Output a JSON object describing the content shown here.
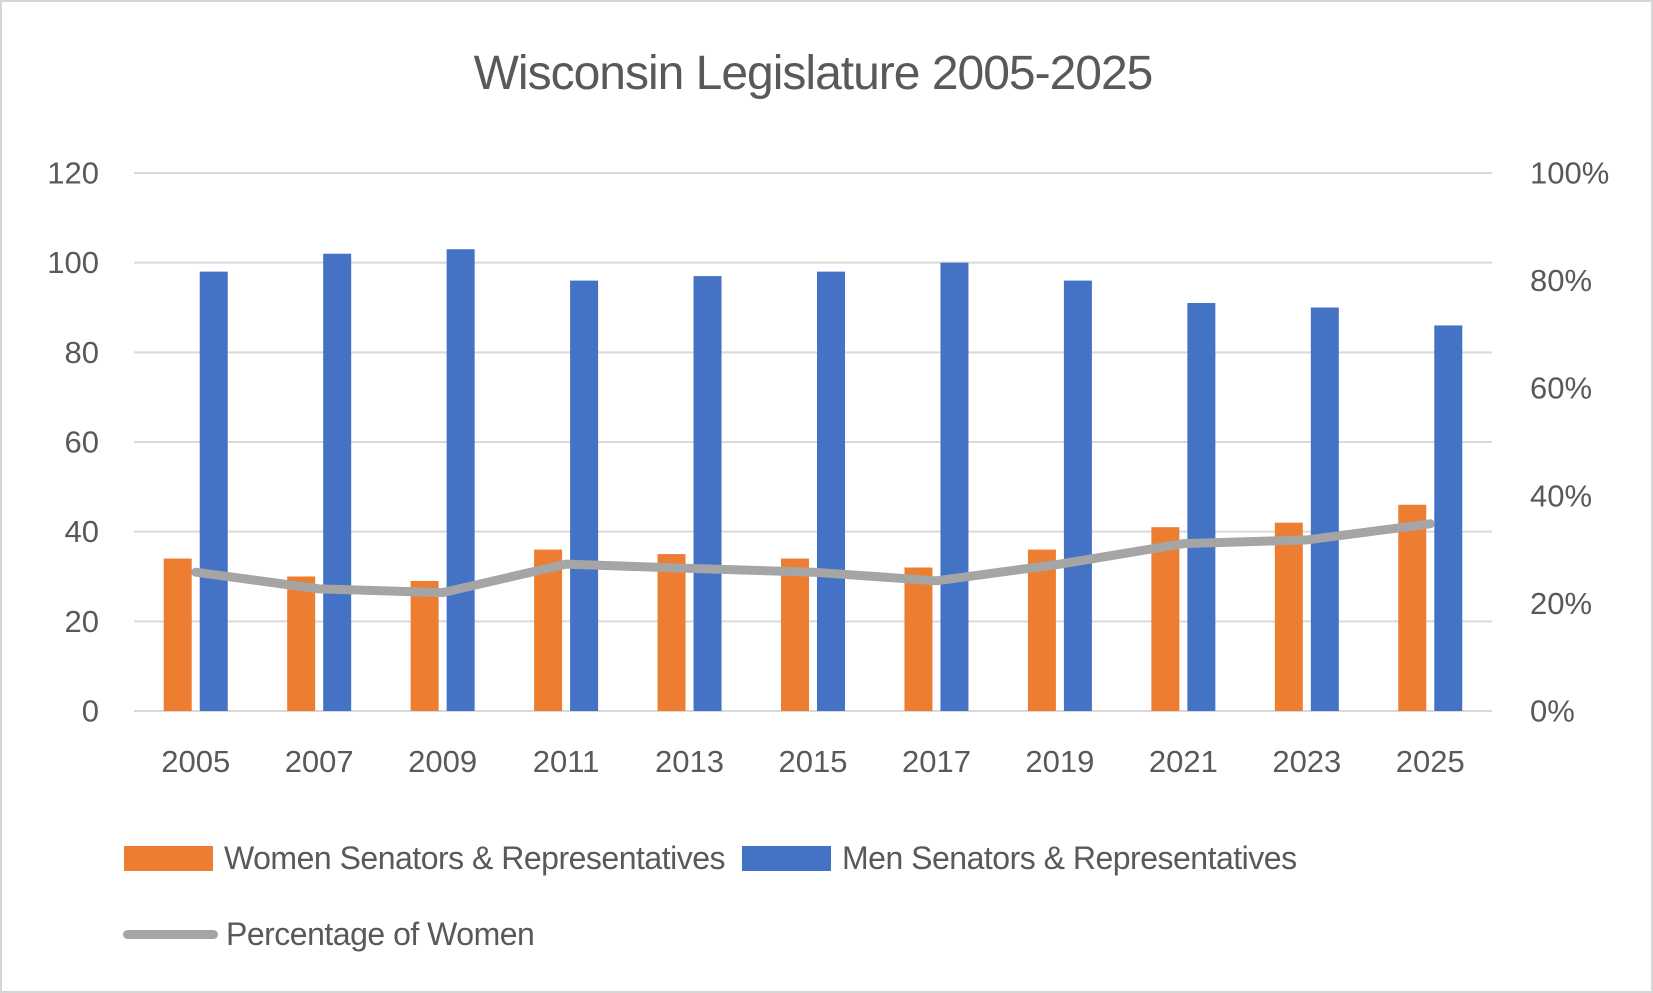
{
  "title": "Wisconsin Legislature 2005-2025",
  "colors": {
    "women_bar": "#ED7D31",
    "men_bar": "#4472C4",
    "pct_line": "#A5A5A5",
    "text": "#595959",
    "gridline": "#D9D9D9",
    "background": "#FFFFFF",
    "frame_border": "#D6D6D6"
  },
  "legend": {
    "women_label": "Women Senators & Representatives",
    "men_label": "Men Senators & Representatives",
    "pct_label": "Percentage of Women"
  },
  "chart_data": {
    "type": "bar",
    "subtype": "grouped-bars-with-line-overlay",
    "title": "Wisconsin Legislature 2005-2025",
    "categories": [
      "2005",
      "2007",
      "2009",
      "2011",
      "2013",
      "2015",
      "2017",
      "2019",
      "2021",
      "2023",
      "2025"
    ],
    "series": [
      {
        "name": "Women Senators & Representatives",
        "type": "bar",
        "axis": "left",
        "color": "#ED7D31",
        "values": [
          34,
          30,
          29,
          36,
          35,
          34,
          32,
          36,
          41,
          42,
          46
        ]
      },
      {
        "name": "Men Senators & Representatives",
        "type": "bar",
        "axis": "left",
        "color": "#4472C4",
        "values": [
          98,
          102,
          103,
          96,
          97,
          98,
          100,
          96,
          91,
          90,
          86
        ]
      },
      {
        "name": "Percentage of Women",
        "type": "line",
        "axis": "right",
        "color": "#A5A5A5",
        "values": [
          25.8,
          22.7,
          22.0,
          27.3,
          26.5,
          25.8,
          24.2,
          27.3,
          31.1,
          31.8,
          34.8
        ]
      }
    ],
    "left_axis": {
      "range": [
        0,
        120
      ],
      "tick_labels": [
        "0",
        "20",
        "40",
        "60",
        "80",
        "100",
        "120"
      ],
      "tick_values": [
        0,
        20,
        40,
        60,
        80,
        100,
        120
      ]
    },
    "right_axis": {
      "range": [
        0,
        100
      ],
      "unit": "%",
      "tick_labels": [
        "0%",
        "20%",
        "40%",
        "60%",
        "80%",
        "100%"
      ],
      "tick_values": [
        0,
        20,
        40,
        60,
        80,
        100
      ],
      "note": "100% aligns with left-axis value 120"
    },
    "grid": true,
    "legend_position": "bottom-left"
  }
}
